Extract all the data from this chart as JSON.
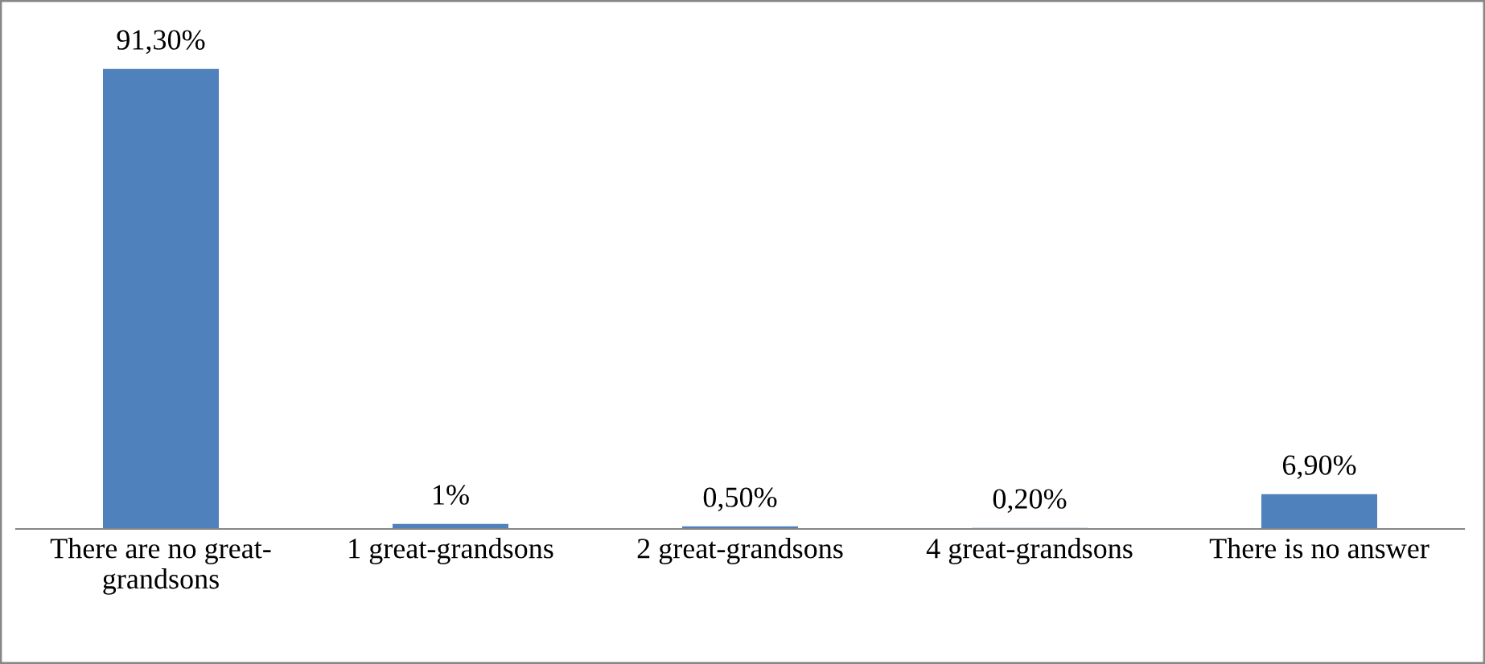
{
  "chart_data": {
    "type": "bar",
    "categories": [
      "There are no great-\ngrandsons",
      "1 great-grandsons",
      "2 great-grandsons",
      "4 great-grandsons",
      "There is no answer"
    ],
    "values": [
      91.3,
      1,
      0.5,
      0.2,
      6.9
    ],
    "value_labels": [
      "91,30%",
      "1%",
      "0,50%",
      "0,20%",
      "6,90%"
    ],
    "color": "#4f81bd",
    "grid": false,
    "legend": false
  }
}
